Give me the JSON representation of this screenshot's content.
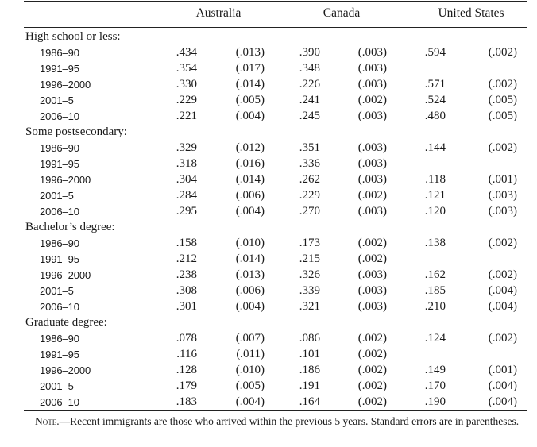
{
  "columns": [
    "Australia",
    "Canada",
    "United States"
  ],
  "groups": [
    {
      "label": "High school or less:",
      "rows": [
        {
          "period": "1986–90",
          "au": ".434",
          "au_se": "(.013)",
          "ca": ".390",
          "ca_se": "(.003)",
          "us": ".594",
          "us_se": "(.002)"
        },
        {
          "period": "1991–95",
          "au": ".354",
          "au_se": "(.017)",
          "ca": ".348",
          "ca_se": "(.003)",
          "us": "",
          "us_se": ""
        },
        {
          "period": "1996–2000",
          "au": ".330",
          "au_se": "(.014)",
          "ca": ".226",
          "ca_se": "(.003)",
          "us": ".571",
          "us_se": "(.002)"
        },
        {
          "period": "2001–5",
          "au": ".229",
          "au_se": "(.005)",
          "ca": ".241",
          "ca_se": "(.002)",
          "us": ".524",
          "us_se": "(.005)"
        },
        {
          "period": "2006–10",
          "au": ".221",
          "au_se": "(.004)",
          "ca": ".245",
          "ca_se": "(.003)",
          "us": ".480",
          "us_se": "(.005)"
        }
      ]
    },
    {
      "label": "Some postsecondary:",
      "rows": [
        {
          "period": "1986–90",
          "au": ".329",
          "au_se": "(.012)",
          "ca": ".351",
          "ca_se": "(.003)",
          "us": ".144",
          "us_se": "(.002)"
        },
        {
          "period": "1991–95",
          "au": ".318",
          "au_se": "(.016)",
          "ca": ".336",
          "ca_se": "(.003)",
          "us": "",
          "us_se": ""
        },
        {
          "period": "1996–2000",
          "au": ".304",
          "au_se": "(.014)",
          "ca": ".262",
          "ca_se": "(.003)",
          "us": ".118",
          "us_se": "(.001)"
        },
        {
          "period": "2001–5",
          "au": ".284",
          "au_se": "(.006)",
          "ca": ".229",
          "ca_se": "(.002)",
          "us": ".121",
          "us_se": "(.003)"
        },
        {
          "period": "2006–10",
          "au": ".295",
          "au_se": "(.004)",
          "ca": ".270",
          "ca_se": "(.003)",
          "us": ".120",
          "us_se": "(.003)"
        }
      ]
    },
    {
      "label": "Bachelor’s degree:",
      "rows": [
        {
          "period": "1986–90",
          "au": ".158",
          "au_se": "(.010)",
          "ca": ".173",
          "ca_se": "(.002)",
          "us": ".138",
          "us_se": "(.002)"
        },
        {
          "period": "1991–95",
          "au": ".212",
          "au_se": "(.014)",
          "ca": ".215",
          "ca_se": "(.002)",
          "us": "",
          "us_se": ""
        },
        {
          "period": "1996–2000",
          "au": ".238",
          "au_se": "(.013)",
          "ca": ".326",
          "ca_se": "(.003)",
          "us": ".162",
          "us_se": "(.002)"
        },
        {
          "period": "2001–5",
          "au": ".308",
          "au_se": "(.006)",
          "ca": ".339",
          "ca_se": "(.003)",
          "us": ".185",
          "us_se": "(.004)"
        },
        {
          "period": "2006–10",
          "au": ".301",
          "au_se": "(.004)",
          "ca": ".321",
          "ca_se": "(.003)",
          "us": ".210",
          "us_se": "(.004)"
        }
      ]
    },
    {
      "label": "Graduate degree:",
      "rows": [
        {
          "period": "1986–90",
          "au": ".078",
          "au_se": "(.007)",
          "ca": ".086",
          "ca_se": "(.002)",
          "us": ".124",
          "us_se": "(.002)"
        },
        {
          "period": "1991–95",
          "au": ".116",
          "au_se": "(.011)",
          "ca": ".101",
          "ca_se": "(.002)",
          "us": "",
          "us_se": ""
        },
        {
          "period": "1996–2000",
          "au": ".128",
          "au_se": "(.010)",
          "ca": ".186",
          "ca_se": "(.002)",
          "us": ".149",
          "us_se": "(.001)"
        },
        {
          "period": "2001–5",
          "au": ".179",
          "au_se": "(.005)",
          "ca": ".191",
          "ca_se": "(.002)",
          "us": ".170",
          "us_se": "(.004)"
        },
        {
          "period": "2006–10",
          "au": ".183",
          "au_se": "(.004)",
          "ca": ".164",
          "ca_se": "(.002)",
          "us": ".190",
          "us_se": "(.004)"
        }
      ]
    }
  ],
  "note": {
    "label": "Note.",
    "text": "—Recent immigrants are those who arrived within the previous 5 years. Standard errors are in parentheses."
  }
}
